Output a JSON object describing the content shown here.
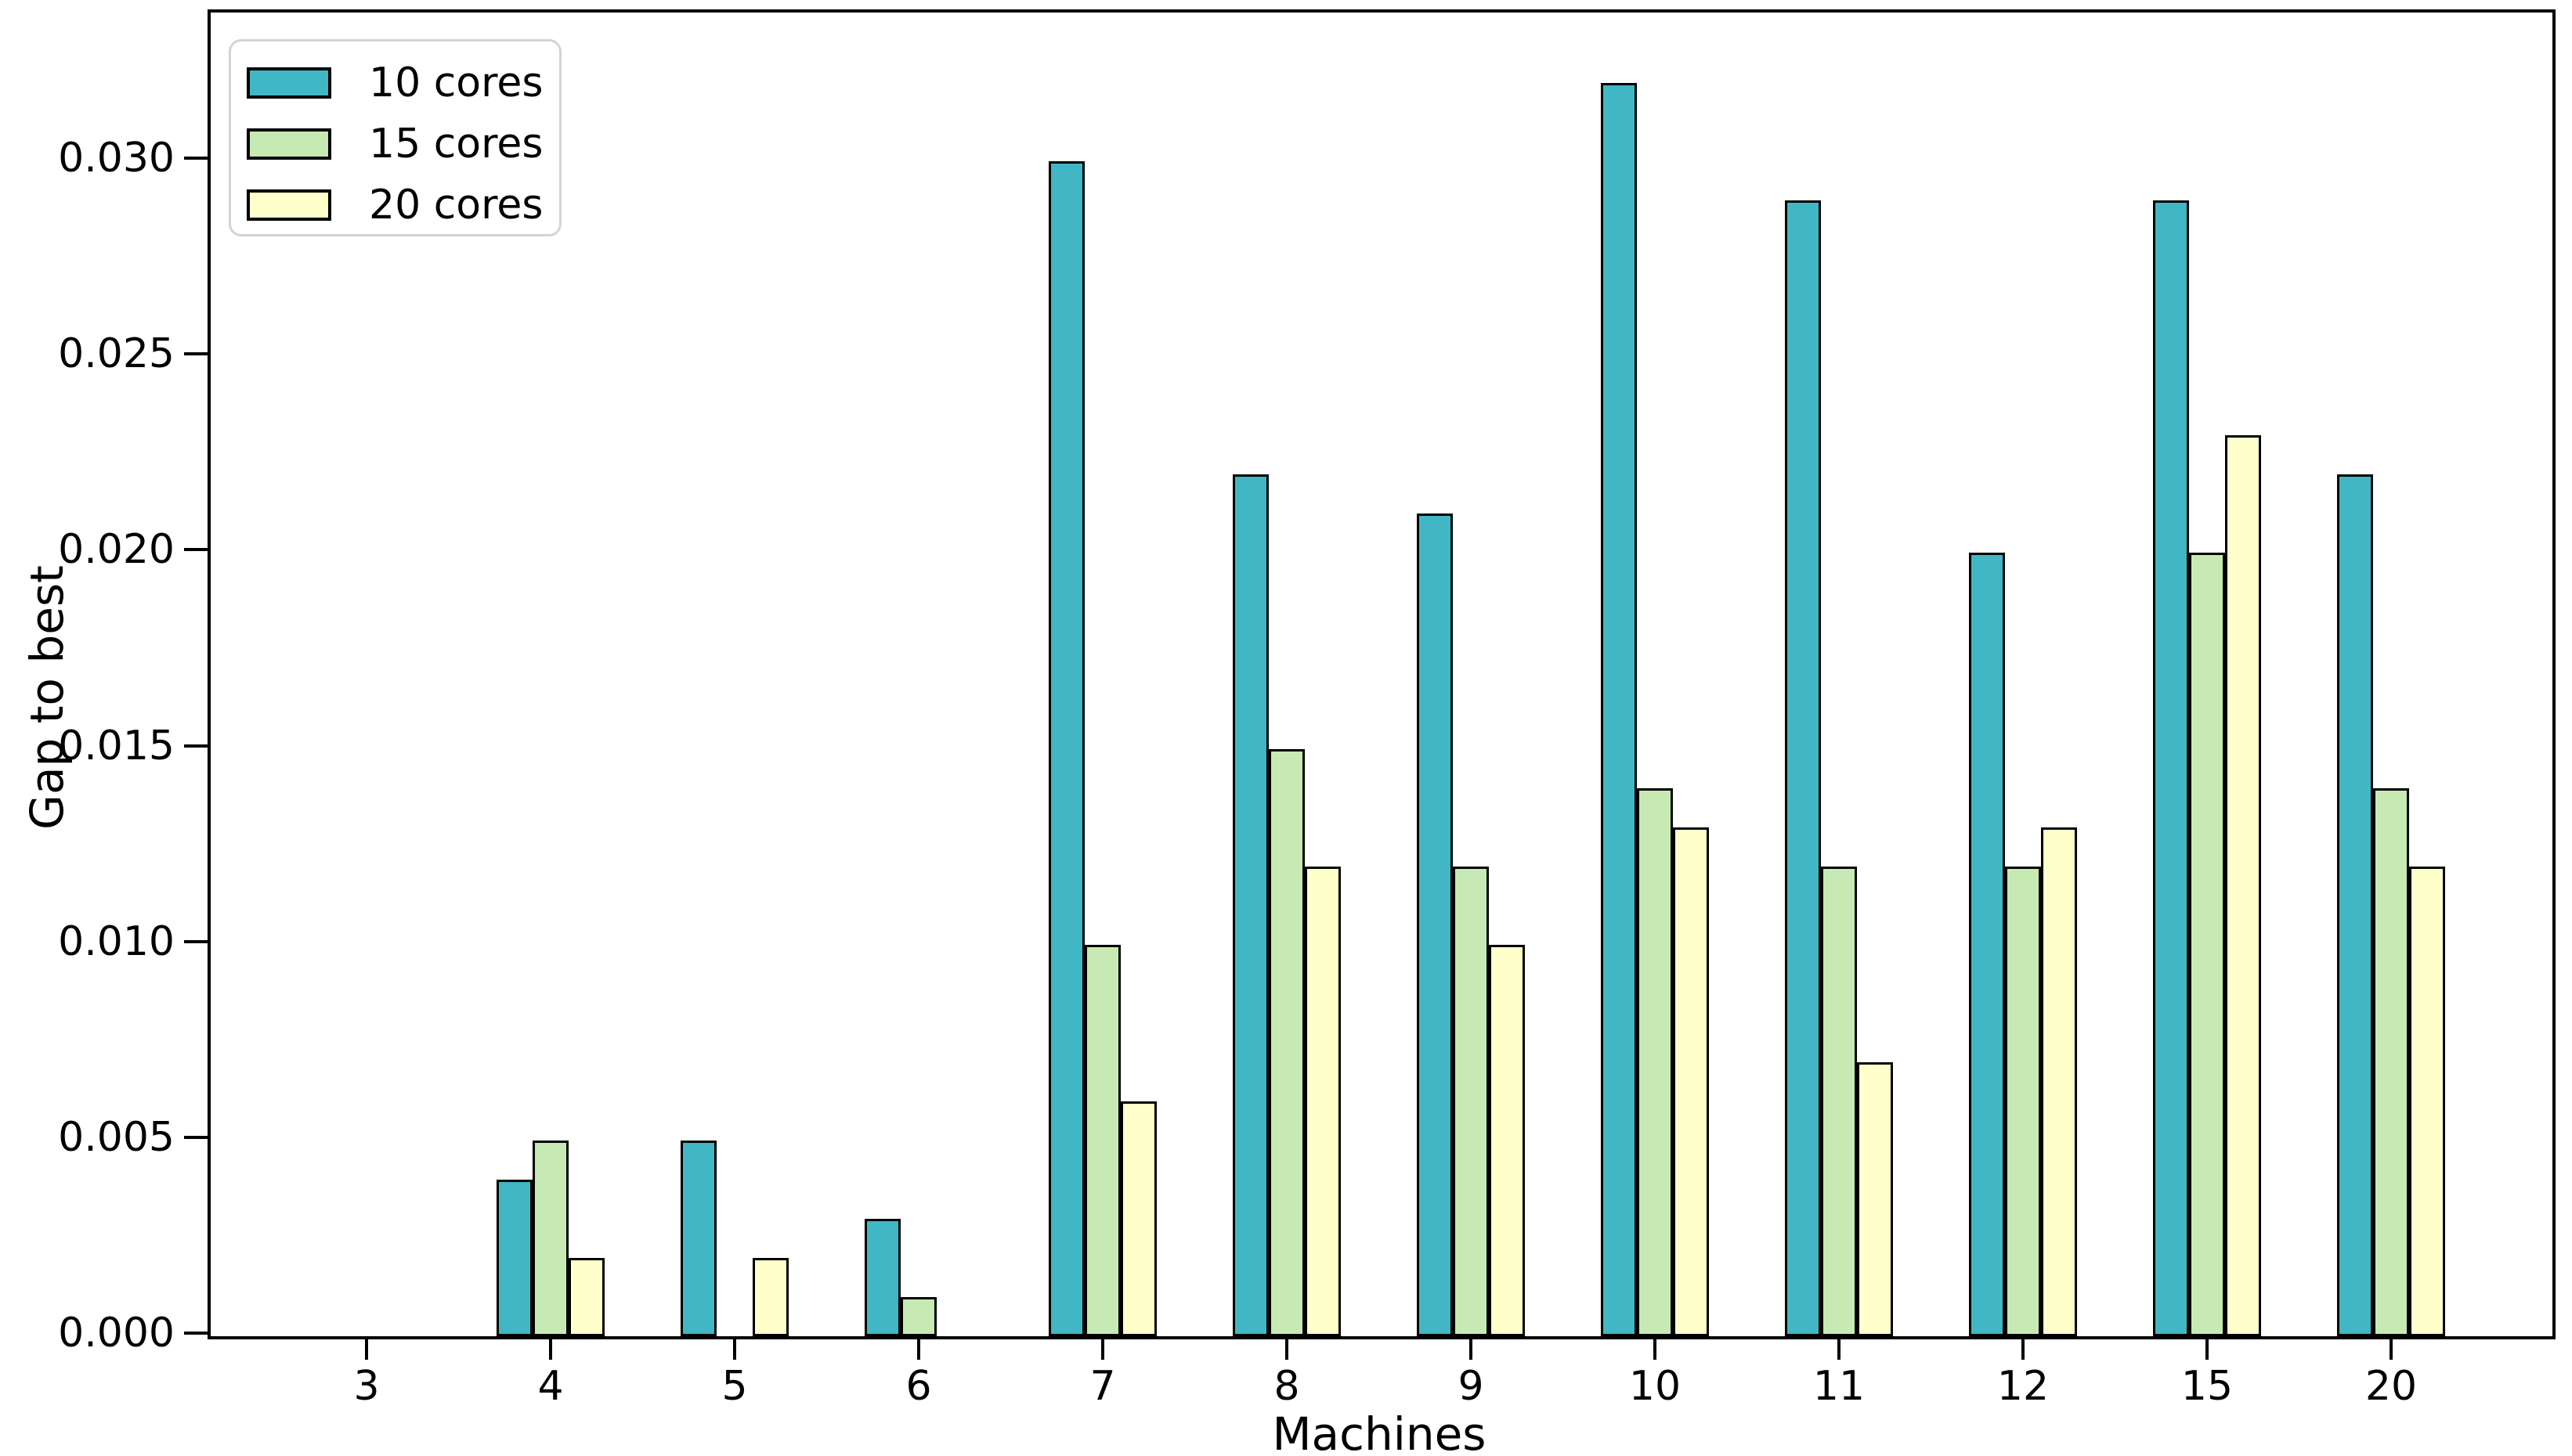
{
  "chart_data": {
    "type": "bar",
    "title": "",
    "xlabel": "Machines",
    "ylabel": "Gap to best",
    "categories": [
      "3",
      "4",
      "5",
      "6",
      "7",
      "8",
      "9",
      "10",
      "11",
      "12",
      "15",
      "20"
    ],
    "series": [
      {
        "name": "10 cores",
        "color": "#41b6c4",
        "values": [
          0,
          0.004,
          0.005,
          0.003,
          0.03,
          0.022,
          0.021,
          0.032,
          0.029,
          0.02,
          0.029,
          0.022
        ]
      },
      {
        "name": "15 cores",
        "color": "#c7e9b4",
        "values": [
          0,
          0.005,
          0,
          0.001,
          0.01,
          0.015,
          0.012,
          0.014,
          0.012,
          0.012,
          0.02,
          0.014
        ]
      },
      {
        "name": "20 cores",
        "color": "#ffffcc",
        "values": [
          0,
          0.002,
          0.002,
          0,
          0.006,
          0.012,
          0.01,
          0.013,
          0.007,
          0.013,
          0.023,
          0.012
        ]
      }
    ],
    "ylim": [
      0,
      0.0338
    ],
    "yticks": [
      0,
      0.005,
      0.01,
      0.015,
      0.02,
      0.025,
      0.03
    ],
    "ytick_labels": [
      "0.000",
      "0.005",
      "0.010",
      "0.015",
      "0.020",
      "0.025",
      "0.030"
    ],
    "legend_position": "upper left",
    "grid": false,
    "bar_edge_color": "#000000",
    "axis_color": "#000000",
    "background_color": "#ffffff"
  }
}
